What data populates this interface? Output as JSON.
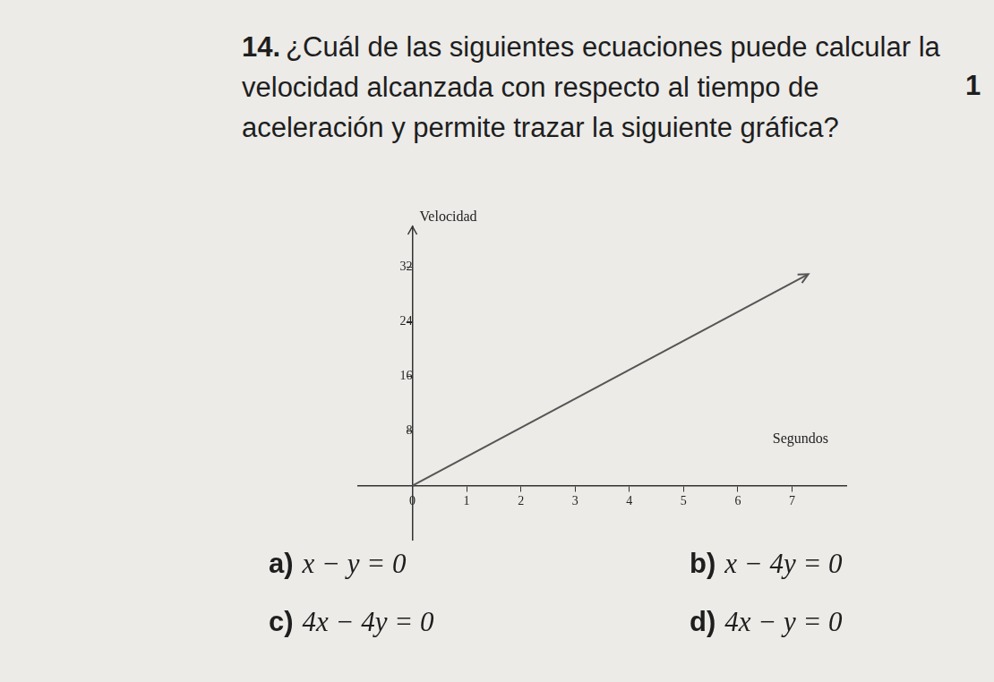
{
  "question": {
    "number": "14.",
    "text": "¿Cuál de las siguientes ecuaciones puede calcular la velocidad alcanzada con respecto al tiempo de aceleración y permite trazar la siguiente gráfica?"
  },
  "margin_text": "1",
  "chart_data": {
    "type": "line",
    "ylabel": "Velocidad",
    "xlabel": "Segundos",
    "x": [
      0,
      7.3
    ],
    "values": [
      0,
      31
    ],
    "color": "#555555",
    "marker": "arrow",
    "xlim": [
      -1,
      8
    ],
    "ylim": [
      -8,
      38
    ],
    "xticks": [
      0,
      1,
      2,
      3,
      4,
      5,
      6,
      7
    ],
    "yticks": [
      8,
      16,
      24,
      32
    ],
    "grid": false
  },
  "options": [
    {
      "letter": "a)",
      "text": "x − y = 0"
    },
    {
      "letter": "b)",
      "text": "x − 4y = 0"
    },
    {
      "letter": "c)",
      "text": "4x − 4y = 0"
    },
    {
      "letter": "d)",
      "text": "4x − y = 0"
    }
  ]
}
